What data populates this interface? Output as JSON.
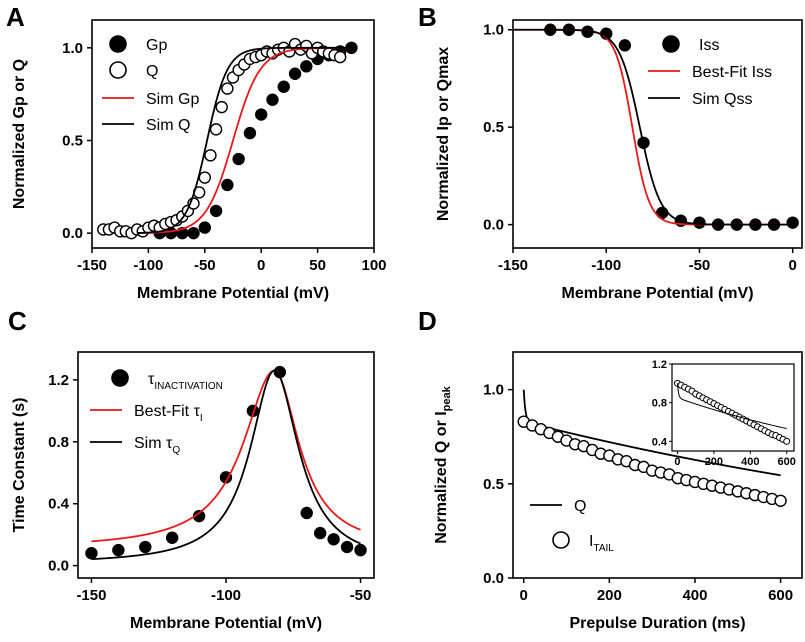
{
  "chart_data": [
    {
      "panel": "A",
      "type": "scatter",
      "xlabel": "Membrane Potential (mV)",
      "ylabel": "Normalized Gp or Q",
      "xlim": [
        -150,
        100
      ],
      "ylim": [
        -0.08,
        1.15
      ],
      "xticks": [
        -150,
        -100,
        -50,
        0,
        50,
        100
      ],
      "yticks": [
        0.0,
        0.5,
        1.0
      ],
      "ytick_labels": [
        "0.0",
        "0.5",
        "1.0"
      ],
      "grid": false,
      "legend_position": "top-left",
      "series": [
        {
          "name": "Gp",
          "kind": "points",
          "marker": "filled-circle",
          "color": "#000000",
          "x": [
            -90,
            -80,
            -70,
            -60,
            -50,
            -40,
            -30,
            -20,
            -10,
            0,
            10,
            20,
            30,
            40,
            50,
            60,
            70,
            80
          ],
          "y": [
            0.0,
            0.0,
            0.0,
            0.0,
            0.03,
            0.12,
            0.26,
            0.4,
            0.54,
            0.64,
            0.72,
            0.79,
            0.86,
            0.9,
            0.94,
            0.96,
            0.98,
            1.0
          ]
        },
        {
          "name": "Q",
          "kind": "points",
          "marker": "open-circle",
          "color": "#000000",
          "x": [
            -140,
            -135,
            -130,
            -125,
            -120,
            -115,
            -110,
            -105,
            -100,
            -95,
            -90,
            -85,
            -80,
            -75,
            -70,
            -65,
            -60,
            -55,
            -50,
            -45,
            -40,
            -35,
            -30,
            -25,
            -20,
            -15,
            -10,
            -5,
            0,
            5,
            10,
            15,
            20,
            25,
            30,
            35,
            40,
            45,
            50,
            55,
            60,
            65,
            70
          ],
          "y": [
            0.02,
            0.02,
            0.03,
            0.01,
            0.01,
            0.0,
            0.02,
            0.01,
            0.03,
            0.04,
            0.03,
            0.05,
            0.06,
            0.07,
            0.09,
            0.12,
            0.16,
            0.22,
            0.3,
            0.42,
            0.56,
            0.68,
            0.78,
            0.84,
            0.88,
            0.91,
            0.94,
            0.95,
            0.96,
            0.98,
            0.97,
            0.99,
            1.0,
            0.98,
            1.02,
            0.99,
            1.01,
            0.97,
            1.0,
            0.98,
            0.97,
            0.96,
            0.95
          ]
        },
        {
          "name": "Sim Gp",
          "kind": "line",
          "color": "#e8191a",
          "model": "boltzmann-rise",
          "v_half": -25,
          "slope": 12,
          "x_range": [
            -110,
            80
          ]
        },
        {
          "name": "Sim Q",
          "kind": "line",
          "color": "#000000",
          "model": "boltzmann-rise",
          "v_half": -48,
          "slope": 9,
          "x_range": [
            -110,
            80
          ]
        }
      ]
    },
    {
      "panel": "B",
      "type": "scatter",
      "xlabel": "Membrane Potential (mV)",
      "ylabel": "Normalized Ip or Qmax",
      "xlim": [
        -150,
        5
      ],
      "ylim": [
        -0.12,
        1.05
      ],
      "xticks": [
        -150,
        -100,
        -50,
        0
      ],
      "yticks": [
        0.0,
        0.5,
        1.0
      ],
      "ytick_labels": [
        "0.0",
        "0.5",
        "1.0"
      ],
      "grid": false,
      "legend_position": "top-right",
      "series": [
        {
          "name": "Iss",
          "kind": "points",
          "marker": "filled-circle",
          "color": "#000000",
          "x": [
            -130,
            -120,
            -110,
            -100,
            -90,
            -80,
            -70,
            -60,
            -50,
            -40,
            -30,
            -20,
            -10,
            0
          ],
          "y": [
            1.0,
            1.0,
            0.99,
            0.98,
            0.92,
            0.42,
            0.06,
            0.02,
            0.01,
            0.0,
            0.0,
            0.0,
            0.0,
            0.01
          ]
        },
        {
          "name": "Best-Fit Iss",
          "kind": "line",
          "color": "#e8191a",
          "model": "boltzmann-fall",
          "v_half": -86,
          "slope": 4.5,
          "x_range": [
            -150,
            0
          ]
        },
        {
          "name": "Sim Qss",
          "kind": "line",
          "color": "#000000",
          "model": "boltzmann-fall",
          "v_half": -82,
          "slope": 5.5,
          "x_range": [
            -150,
            0
          ]
        }
      ]
    },
    {
      "panel": "C",
      "type": "scatter",
      "xlabel": "Membrane Potential (mV)",
      "ylabel": "Time Constant (s)",
      "xlim": [
        -155,
        -45
      ],
      "ylim": [
        -0.08,
        1.38
      ],
      "xticks": [
        -150,
        -100,
        -50
      ],
      "yticks": [
        0.0,
        0.4,
        0.8,
        1.2
      ],
      "ytick_labels": [
        "0.0",
        "0.4",
        "0.8",
        "1.2"
      ],
      "grid": false,
      "legend_position": "top-left",
      "series": [
        {
          "name": "τ",
          "subscript": "INACTIVATION",
          "kind": "points",
          "marker": "filled-circle",
          "color": "#000000",
          "x": [
            -150,
            -140,
            -130,
            -120,
            -110,
            -100,
            -90,
            -80,
            -70,
            -65,
            -60,
            -55,
            -50
          ],
          "y": [
            0.08,
            0.1,
            0.12,
            0.18,
            0.32,
            0.57,
            1.0,
            1.25,
            0.34,
            0.21,
            0.17,
            0.12,
            0.1
          ]
        },
        {
          "name": "Best-Fit τ",
          "subscript": "I",
          "kind": "line",
          "color": "#e8191a",
          "model": "peak",
          "x_range": [
            -150,
            -50
          ],
          "baseline": 0.11,
          "peak_x": -82,
          "peak_y": 1.26,
          "width_left": 14,
          "width_right": 11
        },
        {
          "name": "Sim τ",
          "subscript": "Q",
          "kind": "line",
          "color": "#000000",
          "model": "peak",
          "x_range": [
            -150,
            -50
          ],
          "baseline": 0.01,
          "peak_x": -82,
          "peak_y": 1.26,
          "width_left": 11,
          "width_right": 11
        }
      ]
    },
    {
      "panel": "D",
      "type": "scatter",
      "xlabel": "Prepulse Duration (ms)",
      "ylabel": "Normalized Q or I",
      "ylabel_subscript": "peak",
      "xlim": [
        -25,
        650
      ],
      "ylim": [
        0.0,
        1.2
      ],
      "xticks": [
        0,
        200,
        400,
        600
      ],
      "yticks": [
        0.0,
        0.5,
        1.0
      ],
      "ytick_labels": [
        "0.0",
        "0.5",
        "1.0"
      ],
      "grid": false,
      "legend_position": "bottom-left",
      "series": [
        {
          "name": "Q",
          "kind": "line",
          "color": "#000000",
          "model": "decay",
          "x_range": [
            0,
            600
          ],
          "start": 1.0,
          "plateau": 0.83,
          "tau_fast": 4,
          "slope": 0.0007
        },
        {
          "name": "I",
          "subscript": "TAIL",
          "kind": "points",
          "marker": "open-circle",
          "color": "#000000",
          "x": [
            0,
            20,
            40,
            60,
            80,
            100,
            120,
            140,
            160,
            180,
            200,
            220,
            240,
            260,
            280,
            300,
            320,
            340,
            360,
            380,
            400,
            420,
            440,
            460,
            480,
            500,
            520,
            540,
            560,
            580,
            600
          ],
          "y": [
            0.83,
            0.81,
            0.79,
            0.77,
            0.75,
            0.73,
            0.71,
            0.7,
            0.68,
            0.66,
            0.65,
            0.63,
            0.62,
            0.6,
            0.59,
            0.57,
            0.56,
            0.55,
            0.53,
            0.52,
            0.51,
            0.5,
            0.49,
            0.48,
            0.47,
            0.46,
            0.45,
            0.44,
            0.43,
            0.42,
            0.41
          ]
        }
      ],
      "inset": {
        "xlim": [
          -30,
          640
        ],
        "ylim": [
          0.3,
          1.2
        ],
        "xticks": [
          0,
          200,
          400,
          600
        ],
        "yticks": [
          0.4,
          0.8,
          1.2
        ],
        "ytick_labels": [
          "0.4",
          "0.8",
          "1.2"
        ],
        "series": [
          {
            "kind": "points",
            "marker": "open-circle",
            "color": "#000000",
            "x": [
              0,
              20,
              40,
              60,
              80,
              100,
              120,
              140,
              160,
              180,
              200,
              220,
              240,
              260,
              280,
              300,
              320,
              340,
              360,
              380,
              400,
              420,
              440,
              460,
              480,
              500,
              520,
              540,
              560,
              580,
              600
            ],
            "y": [
              1.0,
              0.98,
              0.96,
              0.94,
              0.92,
              0.89,
              0.87,
              0.85,
              0.83,
              0.81,
              0.79,
              0.77,
              0.75,
              0.73,
              0.71,
              0.69,
              0.67,
              0.65,
              0.63,
              0.61,
              0.59,
              0.57,
              0.55,
              0.53,
              0.51,
              0.49,
              0.47,
              0.46,
              0.44,
              0.42,
              0.4
            ]
          },
          {
            "kind": "line",
            "color": "#000000",
            "model": "decay",
            "x_range": [
              0,
              600
            ],
            "start": 1.0,
            "plateau": 0.85,
            "tau_fast": 6,
            "slope": 0.00078
          }
        ]
      }
    }
  ]
}
